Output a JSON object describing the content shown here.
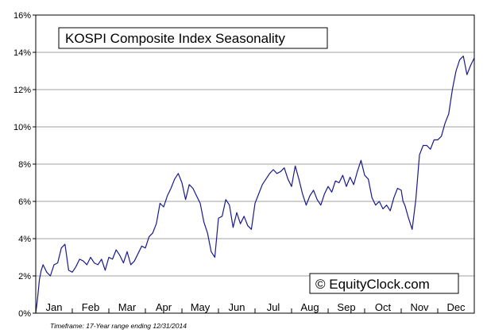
{
  "chart_data": {
    "type": "line",
    "title": "KOSPI Composite Index Seasonality",
    "watermark": "© EquityClock.com",
    "footnote": "Timeframe: 17-Year range ending 12/31/2014",
    "xlabel": "",
    "ylabel": "",
    "ylim": [
      0,
      16
    ],
    "y_ticks": [
      "0%",
      "2%",
      "4%",
      "6%",
      "8%",
      "10%",
      "12%",
      "14%",
      "16%"
    ],
    "months": [
      "Jan",
      "Feb",
      "Mar",
      "Apr",
      "May",
      "Jun",
      "Jul",
      "Aug",
      "Sep",
      "Oct",
      "Nov",
      "Dec"
    ],
    "grid": "horizontal",
    "line_color": "#1a1a8c",
    "series": [
      {
        "x": [
          0.0,
          0.05,
          0.1,
          0.15,
          0.2,
          0.3,
          0.4,
          0.5,
          0.6,
          0.7,
          0.8,
          0.9,
          1.0,
          1.1,
          1.2,
          1.3,
          1.4,
          1.5,
          1.6,
          1.7,
          1.8,
          1.9,
          2.0,
          2.1,
          2.2,
          2.3,
          2.4,
          2.5,
          2.6,
          2.7,
          2.8,
          2.9,
          3.0,
          3.1,
          3.2,
          3.3,
          3.4,
          3.5,
          3.6,
          3.7,
          3.8,
          3.9,
          4.0,
          4.1,
          4.2,
          4.3,
          4.4,
          4.5,
          4.6,
          4.7,
          4.8,
          4.9,
          5.0,
          5.1,
          5.2,
          5.3,
          5.4,
          5.5,
          5.6,
          5.7,
          5.8,
          5.9,
          6.0,
          6.1,
          6.2,
          6.3,
          6.4,
          6.5,
          6.6,
          6.7,
          6.8,
          6.9,
          7.0,
          7.1,
          7.2,
          7.3,
          7.4,
          7.5,
          7.6,
          7.7,
          7.8,
          7.9,
          8.0,
          8.1,
          8.2,
          8.3,
          8.4,
          8.5,
          8.6,
          8.7,
          8.8,
          8.9,
          9.0,
          9.1,
          9.2,
          9.3,
          9.4,
          9.5,
          9.6,
          9.7,
          9.8,
          9.9,
          10.0,
          10.05,
          10.1,
          10.2,
          10.3,
          10.4,
          10.5,
          10.6,
          10.7,
          10.8,
          10.9,
          11.0,
          11.1,
          11.2,
          11.3,
          11.4,
          11.5,
          11.6,
          11.7,
          11.8,
          11.9,
          12.0
        ],
        "y": [
          0.0,
          0.8,
          1.8,
          2.3,
          2.6,
          2.2,
          2.0,
          2.6,
          2.7,
          3.5,
          3.7,
          2.3,
          2.2,
          2.5,
          2.9,
          2.8,
          2.6,
          3.0,
          2.7,
          2.6,
          2.9,
          2.3,
          3.0,
          2.9,
          3.4,
          3.1,
          2.7,
          3.3,
          2.6,
          2.8,
          3.2,
          3.6,
          3.5,
          4.1,
          4.3,
          4.8,
          5.9,
          5.7,
          6.3,
          6.7,
          7.2,
          7.5,
          7.0,
          6.1,
          6.9,
          6.7,
          6.3,
          5.9,
          4.9,
          4.3,
          3.3,
          3.0,
          5.1,
          5.2,
          6.1,
          5.8,
          4.6,
          5.4,
          4.8,
          5.2,
          4.7,
          4.5,
          5.9,
          6.4,
          6.9,
          7.2,
          7.5,
          7.7,
          7.5,
          7.6,
          7.8,
          7.2,
          6.8,
          7.9,
          7.2,
          6.4,
          5.8,
          6.3,
          6.6,
          6.1,
          5.8,
          6.4,
          6.8,
          6.5,
          7.1,
          7.0,
          7.4,
          6.8,
          7.3,
          6.9,
          7.6,
          8.2,
          7.4,
          7.2,
          6.2,
          5.8,
          6.0,
          5.6,
          5.8,
          5.5,
          6.2,
          6.7,
          6.6,
          6.0,
          5.8,
          5.1,
          4.5,
          6.1,
          8.5,
          9.0,
          9.0,
          8.8,
          9.3,
          9.3,
          9.5,
          10.2,
          10.7,
          12.0,
          13.0,
          13.6,
          13.8,
          12.8,
          13.3,
          13.7
        ]
      }
    ]
  }
}
